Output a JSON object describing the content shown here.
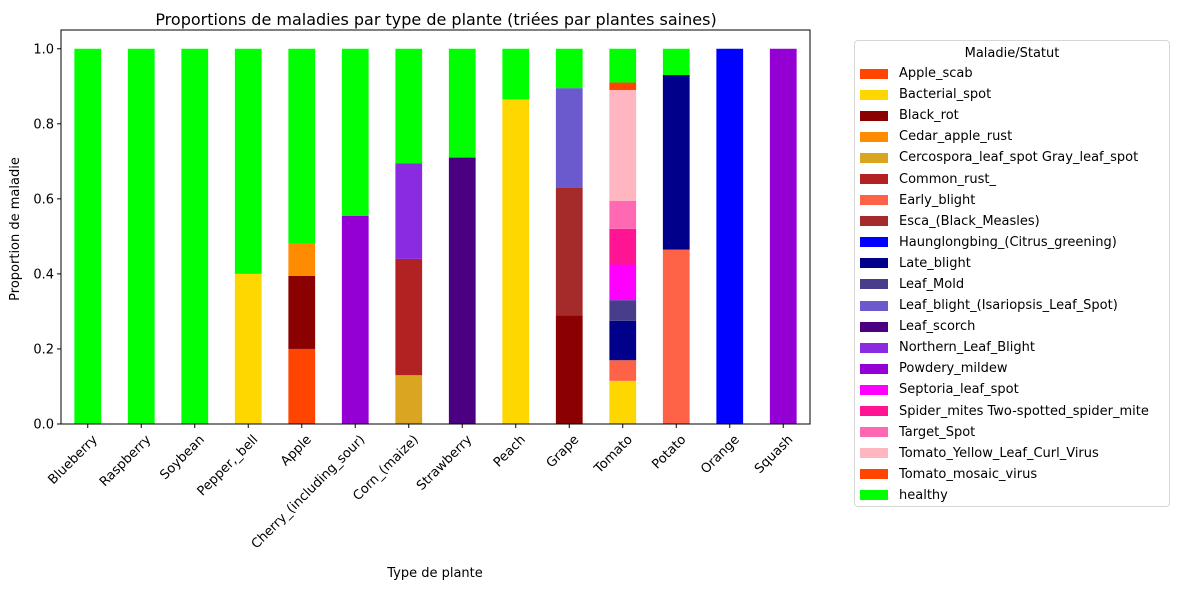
{
  "chart_data": {
    "type": "bar",
    "stacked": true,
    "title": "Proportions de maladies par type de plante (triées par plantes saines)",
    "xlabel": "Type de plante",
    "ylabel": "Proportion de maladie",
    "ylim": [
      0,
      1.05
    ],
    "yticks": [
      "0.0",
      "0.2",
      "0.4",
      "0.6",
      "0.8",
      "1.0"
    ],
    "grid": false,
    "legend_position": "outside-right",
    "legend_title": "Maladie/Statut",
    "categories": [
      "Blueberry",
      "Raspberry",
      "Soybean",
      "Pepper,_bell",
      "Apple",
      "Cherry_(including_sour)",
      "Corn_(maize)",
      "Strawberry",
      "Peach",
      "Grape",
      "Tomato",
      "Potato",
      "Orange",
      "Squash"
    ],
    "series": [
      {
        "name": "Apple_scab",
        "color": "#FF4500",
        "values": [
          0,
          0,
          0,
          0,
          0.2,
          0,
          0,
          0,
          0,
          0,
          0,
          0,
          0,
          0
        ]
      },
      {
        "name": "Bacterial_spot",
        "color": "#FFD700",
        "values": [
          0,
          0,
          0,
          0.4,
          0,
          0,
          0,
          0,
          0.865,
          0,
          0.115,
          0,
          0,
          0
        ]
      },
      {
        "name": "Black_rot",
        "color": "#8B0000",
        "values": [
          0,
          0,
          0,
          0,
          0.195,
          0,
          0,
          0,
          0,
          0.29,
          0,
          0,
          0,
          0
        ]
      },
      {
        "name": "Cedar_apple_rust",
        "color": "#FF8C00",
        "values": [
          0,
          0,
          0,
          0,
          0.085,
          0,
          0,
          0,
          0,
          0,
          0,
          0,
          0,
          0
        ]
      },
      {
        "name": "Cercospora_leaf_spot Gray_leaf_spot",
        "color": "#DAA520",
        "values": [
          0,
          0,
          0,
          0,
          0,
          0,
          0.13,
          0,
          0,
          0,
          0,
          0,
          0,
          0
        ]
      },
      {
        "name": "Common_rust_",
        "color": "#B22222",
        "values": [
          0,
          0,
          0,
          0,
          0,
          0,
          0.31,
          0,
          0,
          0,
          0,
          0,
          0,
          0
        ]
      },
      {
        "name": "Early_blight",
        "color": "#FF6347",
        "values": [
          0,
          0,
          0,
          0,
          0,
          0,
          0,
          0,
          0,
          0,
          0.055,
          0.465,
          0,
          0
        ]
      },
      {
        "name": "Esca_(Black_Measles)",
        "color": "#A52A2A",
        "values": [
          0,
          0,
          0,
          0,
          0,
          0,
          0,
          0,
          0,
          0.34,
          0,
          0,
          0,
          0
        ]
      },
      {
        "name": "Haunglongbing_(Citrus_greening)",
        "color": "#0000FF",
        "values": [
          0,
          0,
          0,
          0,
          0,
          0,
          0,
          0,
          0,
          0,
          0,
          0,
          1.0,
          0
        ]
      },
      {
        "name": "Late_blight",
        "color": "#00008B",
        "values": [
          0,
          0,
          0,
          0,
          0,
          0,
          0,
          0,
          0,
          0,
          0.105,
          0.465,
          0,
          0
        ]
      },
      {
        "name": "Leaf_Mold",
        "color": "#483D8B",
        "values": [
          0,
          0,
          0,
          0,
          0,
          0,
          0,
          0,
          0,
          0,
          0.055,
          0,
          0,
          0
        ]
      },
      {
        "name": "Leaf_blight_(Isariopsis_Leaf_Spot)",
        "color": "#6A5ACD",
        "values": [
          0,
          0,
          0,
          0,
          0,
          0,
          0,
          0,
          0,
          0.265,
          0,
          0,
          0,
          0
        ]
      },
      {
        "name": "Leaf_scorch",
        "color": "#4B0082",
        "values": [
          0,
          0,
          0,
          0,
          0,
          0,
          0,
          0.71,
          0,
          0,
          0,
          0,
          0,
          0
        ]
      },
      {
        "name": "Northern_Leaf_Blight",
        "color": "#8A2BE2",
        "values": [
          0,
          0,
          0,
          0,
          0,
          0,
          0.255,
          0,
          0,
          0,
          0,
          0,
          0,
          0
        ]
      },
      {
        "name": "Powdery_mildew",
        "color": "#9400D3",
        "values": [
          0,
          0,
          0,
          0,
          0,
          0.555,
          0,
          0,
          0,
          0,
          0,
          0,
          0,
          1.0
        ]
      },
      {
        "name": "Septoria_leaf_spot",
        "color": "#FF00FF",
        "values": [
          0,
          0,
          0,
          0,
          0,
          0,
          0,
          0,
          0,
          0,
          0.095,
          0,
          0,
          0
        ]
      },
      {
        "name": "Spider_mites Two-spotted_spider_mite",
        "color": "#FF1493",
        "values": [
          0,
          0,
          0,
          0,
          0,
          0,
          0,
          0,
          0,
          0,
          0.095,
          0,
          0,
          0
        ]
      },
      {
        "name": "Target_Spot",
        "color": "#FF69B4",
        "values": [
          0,
          0,
          0,
          0,
          0,
          0,
          0,
          0,
          0,
          0,
          0.075,
          0,
          0,
          0
        ]
      },
      {
        "name": "Tomato_Yellow_Leaf_Curl_Virus",
        "color": "#FFB6C1",
        "values": [
          0,
          0,
          0,
          0,
          0,
          0,
          0,
          0,
          0,
          0,
          0.295,
          0,
          0,
          0
        ]
      },
      {
        "name": "Tomato_mosaic_virus",
        "color": "#FF4500",
        "values": [
          0,
          0,
          0,
          0,
          0,
          0,
          0,
          0,
          0,
          0,
          0.02,
          0,
          0,
          0
        ]
      },
      {
        "name": "healthy",
        "color": "#00FF00",
        "values": [
          1.0,
          1.0,
          1.0,
          0.6,
          0.52,
          0.445,
          0.305,
          0.29,
          0.135,
          0.105,
          0.09,
          0.07,
          0,
          0
        ]
      }
    ]
  }
}
